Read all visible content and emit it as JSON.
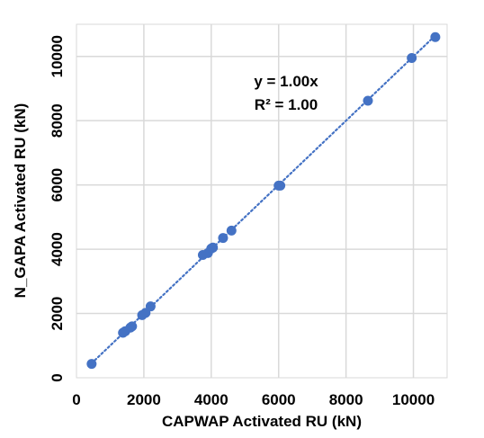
{
  "chart_data": {
    "type": "scatter",
    "xlabel": "CAPWAP Activated RU (kN)",
    "ylabel": "N_GAPA Activated RU (kN)",
    "xlim": [
      0,
      11000
    ],
    "ylim": [
      0,
      11000
    ],
    "x_ticks": [
      0,
      2000,
      4000,
      6000,
      8000,
      10000
    ],
    "y_ticks": [
      0,
      2000,
      4000,
      6000,
      8000,
      10000
    ],
    "grid": true,
    "legend": "none",
    "marker_color": "#4472C4",
    "trendline": {
      "type": "linear",
      "slope": 1.0,
      "style": "dotted",
      "color": "#4472C4",
      "x_range": [
        450,
        10650
      ]
    },
    "annotations": [
      "y = 1.00x",
      "R² = 1.00"
    ],
    "series": [
      {
        "points": [
          {
            "x": 450,
            "y": 430
          },
          {
            "x": 1380,
            "y": 1400
          },
          {
            "x": 1450,
            "y": 1450
          },
          {
            "x": 1600,
            "y": 1560
          },
          {
            "x": 1650,
            "y": 1600
          },
          {
            "x": 1950,
            "y": 1950
          },
          {
            "x": 2050,
            "y": 2020
          },
          {
            "x": 2200,
            "y": 2220
          },
          {
            "x": 3750,
            "y": 3820
          },
          {
            "x": 3900,
            "y": 3880
          },
          {
            "x": 4000,
            "y": 4020
          },
          {
            "x": 4050,
            "y": 4050
          },
          {
            "x": 4350,
            "y": 4350
          },
          {
            "x": 4600,
            "y": 4580
          },
          {
            "x": 6000,
            "y": 5980
          },
          {
            "x": 6050,
            "y": 5980
          },
          {
            "x": 8650,
            "y": 8620
          },
          {
            "x": 9950,
            "y": 9950
          },
          {
            "x": 10650,
            "y": 10600
          }
        ]
      }
    ]
  }
}
